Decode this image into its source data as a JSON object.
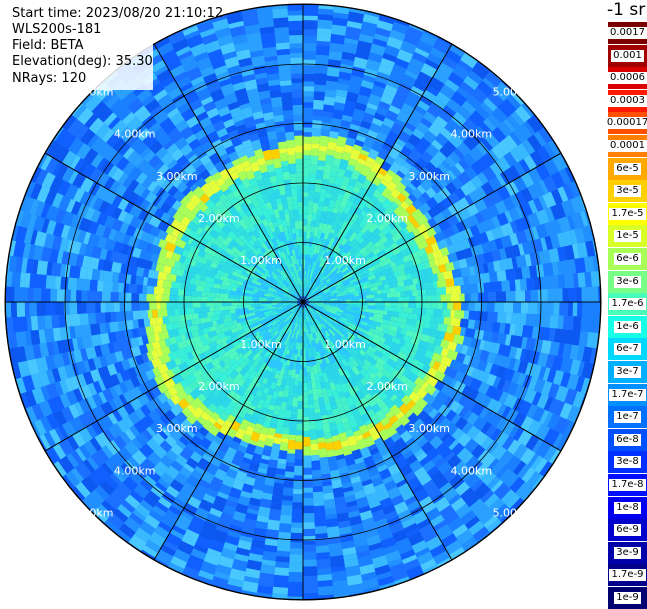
{
  "header": {
    "start_time": "Start time: 2023/08/20 21:10:12",
    "instrument": "WLS200s-181",
    "field": "Field: BETA",
    "elevation": "Elevation(deg): 35.30",
    "nrays": "NRays: 120"
  },
  "colorbar": {
    "title": "-1 sr",
    "labels": [
      "0.0017",
      "0.001",
      "0.0006",
      "0.0003",
      "0.00017",
      "0.0001",
      "6e-5",
      "3e-5",
      "1.7e-5",
      "1e-5",
      "6e-6",
      "3e-6",
      "1.7e-6",
      "1e-6",
      "6e-7",
      "3e-7",
      "1.7e-7",
      "1e-7",
      "6e-8",
      "3e-8",
      "1.7e-8",
      "1e-8",
      "6e-9",
      "3e-9",
      "1.7e-9",
      "1e-9"
    ],
    "colors": [
      "#7a0000",
      "#a00000",
      "#d80000",
      "#ff1a00",
      "#ff5000",
      "#ff8000",
      "#ffa800",
      "#ffd000",
      "#ffff00",
      "#d8ff28",
      "#a8ff58",
      "#78ff88",
      "#48ffb8",
      "#18ffe8",
      "#00d8ff",
      "#00b0ff",
      "#0090ff",
      "#0070ff",
      "#0050ff",
      "#0030ff",
      "#0010ff",
      "#0000ee",
      "#0000cc",
      "#0000aa",
      "#00008a",
      "#000070"
    ]
  },
  "range_labels": [
    "1.00km",
    "2.00km",
    "3.00km",
    "4.00km",
    "5.00km"
  ],
  "plot": {
    "background_color": "#1f7bff",
    "inner_color": "#38f0d8",
    "ring_color": "#e6ff3a",
    "grid_color": "#000000",
    "range_label_color": "#ffffff"
  }
}
